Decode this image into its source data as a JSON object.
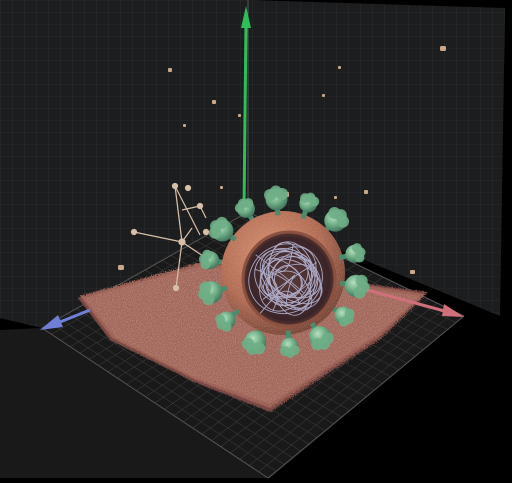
{
  "scene": {
    "view": "3d-molecular-viewport",
    "background_color": "#000000",
    "grid_color": "#3a3a3a",
    "wall_color": "#1c1d1e",
    "floor_color": "#1a1b1c",
    "axes": [
      {
        "name": "y",
        "color": "#2fbf5a"
      },
      {
        "name": "x",
        "color": "#d0707a"
      },
      {
        "name": "z",
        "color": "#6f7fd6"
      }
    ],
    "objects": [
      {
        "name": "membrane-patch",
        "color": "#a2665a"
      },
      {
        "name": "virus-envelope",
        "color": "#b06a52"
      },
      {
        "name": "spike-proteins",
        "color": "#6fae86",
        "count": 14
      },
      {
        "name": "rna-genome",
        "color": "#b9b9d8"
      },
      {
        "name": "protein-fragments",
        "color": "#c9a88a"
      },
      {
        "name": "small-molecule",
        "color": "#d8c0a8"
      }
    ]
  }
}
